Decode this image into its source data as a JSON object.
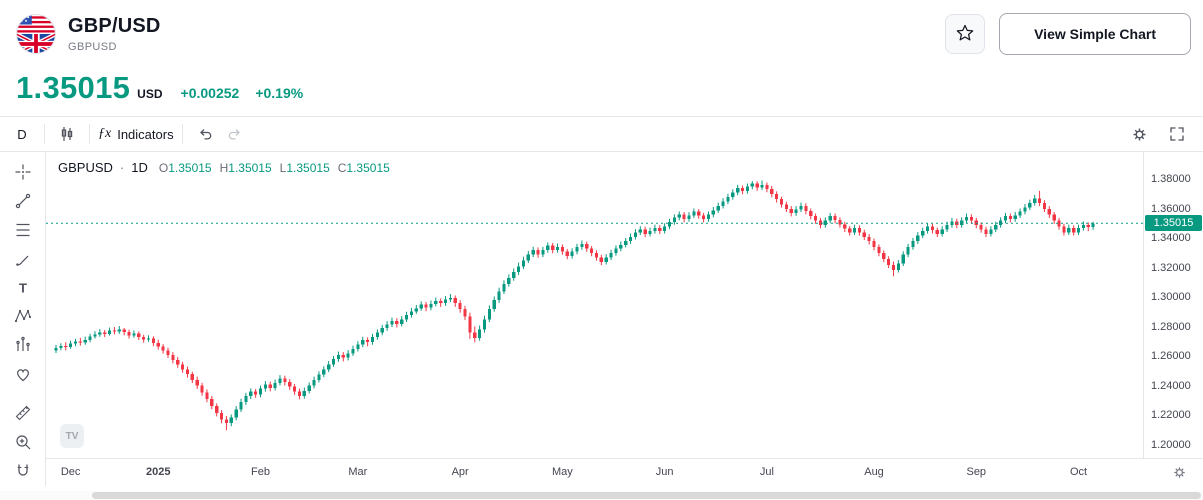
{
  "header": {
    "title": "GBP/USD",
    "subtitle": "GBPUSD",
    "actions": {
      "view_simple_chart": "View Simple Chart"
    }
  },
  "quote": {
    "price": "1.35015",
    "currency": "USD",
    "change": "+0.00252",
    "change_percent": "+0.19%"
  },
  "toolbar": {
    "interval": "D",
    "fx_glyph": "ƒx",
    "indicators_label": "Indicators"
  },
  "icons": {
    "favorite": "star-icon",
    "candle_style": "candles-icon",
    "indicators": "fx-icon",
    "undo": "undo-arrow-icon",
    "redo": "redo-arrow-icon",
    "settings": "gear-icon",
    "fullscreen": "fullscreen-icon",
    "axis_settings": "gear-icon"
  },
  "left_toolbar_tools": [
    "crosshair",
    "trend-line",
    "fib-retracement",
    "brush",
    "text",
    "xabcd-pattern",
    "forecast-bars",
    "heart-emoji",
    "ruler-measure",
    "zoom-in",
    "magnet"
  ],
  "legend": {
    "symbol": "GBPUSD",
    "separator": "·",
    "interval": "1D",
    "open_label": "O",
    "open": "1.35015",
    "high_label": "H",
    "high": "1.35015",
    "low_label": "L",
    "low": "1.35015",
    "close_label": "C",
    "close": "1.35015"
  },
  "watermark": "TV",
  "chart_data": {
    "type": "candlestick",
    "symbol": "GBPUSD",
    "interval": "1D",
    "last_price": 1.35015,
    "colors": {
      "up": "#089981",
      "down": "#f23645"
    },
    "grid": false,
    "legend_position": "top-left",
    "y_ticks": [
      1.38,
      1.36,
      1.34,
      1.32,
      1.3,
      1.28,
      1.26,
      1.24,
      1.22,
      1.2
    ],
    "y_range": [
      1.191,
      1.3985
    ],
    "x_labels": [
      {
        "label": "Dec",
        "i": 3
      },
      {
        "label": "2025",
        "i": 21
      },
      {
        "label": "Feb",
        "i": 42
      },
      {
        "label": "Mar",
        "i": 62
      },
      {
        "label": "Apr",
        "i": 83
      },
      {
        "label": "May",
        "i": 104
      },
      {
        "label": "Jun",
        "i": 125
      },
      {
        "label": "Jul",
        "i": 146
      },
      {
        "label": "Aug",
        "i": 168
      },
      {
        "label": "Sep",
        "i": 189
      },
      {
        "label": "Oct",
        "i": 210
      }
    ],
    "candles": [
      [
        1.264,
        1.2677,
        1.2622,
        1.2655
      ],
      [
        1.2655,
        1.2688,
        1.2641,
        1.267
      ],
      [
        1.267,
        1.2695,
        1.264,
        1.2662
      ],
      [
        1.2662,
        1.2706,
        1.265,
        1.2685
      ],
      [
        1.2685,
        1.2718,
        1.2668,
        1.27
      ],
      [
        1.27,
        1.2725,
        1.2672,
        1.2692
      ],
      [
        1.2692,
        1.2733,
        1.2678,
        1.271
      ],
      [
        1.271,
        1.2752,
        1.2695,
        1.2735
      ],
      [
        1.2735,
        1.277,
        1.272,
        1.2748
      ],
      [
        1.2748,
        1.2784,
        1.2732,
        1.276
      ],
      [
        1.276,
        1.2778,
        1.273,
        1.2752
      ],
      [
        1.2752,
        1.2795,
        1.274,
        1.2775
      ],
      [
        1.2775,
        1.2798,
        1.2748,
        1.2768
      ],
      [
        1.2768,
        1.2805,
        1.2752,
        1.278
      ],
      [
        1.278,
        1.2792,
        1.2742,
        1.2765
      ],
      [
        1.2765,
        1.278,
        1.272,
        1.2742
      ],
      [
        1.2742,
        1.2775,
        1.2726,
        1.2755
      ],
      [
        1.2755,
        1.2768,
        1.271,
        1.273
      ],
      [
        1.273,
        1.2745,
        1.2692,
        1.2712
      ],
      [
        1.2712,
        1.2742,
        1.2698,
        1.272
      ],
      [
        1.272,
        1.2735,
        1.2668,
        1.269
      ],
      [
        1.269,
        1.2712,
        1.2645,
        1.2665
      ],
      [
        1.2665,
        1.2682,
        1.2618,
        1.264
      ],
      [
        1.264,
        1.2658,
        1.2588,
        1.261
      ],
      [
        1.261,
        1.2628,
        1.2552,
        1.2575
      ],
      [
        1.2575,
        1.2595,
        1.2522,
        1.2545
      ],
      [
        1.2545,
        1.2562,
        1.2488,
        1.251
      ],
      [
        1.251,
        1.253,
        1.2455,
        1.2478
      ],
      [
        1.2478,
        1.2495,
        1.2418,
        1.244
      ],
      [
        1.244,
        1.2462,
        1.2378,
        1.24
      ],
      [
        1.24,
        1.242,
        1.2332,
        1.2355
      ],
      [
        1.2355,
        1.2375,
        1.2288,
        1.231
      ],
      [
        1.231,
        1.233,
        1.224,
        1.2262
      ],
      [
        1.2262,
        1.228,
        1.2192,
        1.2215
      ],
      [
        1.2215,
        1.2235,
        1.2145,
        1.217
      ],
      [
        1.217,
        1.2195,
        1.2098,
        1.2148
      ],
      [
        1.2148,
        1.2205,
        1.2125,
        1.2185
      ],
      [
        1.2185,
        1.2262,
        1.2165,
        1.224
      ],
      [
        1.224,
        1.2312,
        1.2222,
        1.229
      ],
      [
        1.229,
        1.2352,
        1.227,
        1.233
      ],
      [
        1.233,
        1.2382,
        1.231,
        1.236
      ],
      [
        1.236,
        1.2378,
        1.2318,
        1.234
      ],
      [
        1.234,
        1.2402,
        1.2322,
        1.238
      ],
      [
        1.238,
        1.2432,
        1.236,
        1.241
      ],
      [
        1.241,
        1.2428,
        1.2362,
        1.2385
      ],
      [
        1.2385,
        1.2442,
        1.2368,
        1.242
      ],
      [
        1.242,
        1.2472,
        1.2402,
        1.245
      ],
      [
        1.245,
        1.2468,
        1.2402,
        1.2425
      ],
      [
        1.2425,
        1.2445,
        1.2372,
        1.2395
      ],
      [
        1.2395,
        1.2412,
        1.2338,
        1.236
      ],
      [
        1.236,
        1.238,
        1.2308,
        1.233
      ],
      [
        1.233,
        1.2388,
        1.2312,
        1.2365
      ],
      [
        1.2365,
        1.2422,
        1.2348,
        1.24
      ],
      [
        1.24,
        1.2462,
        1.2382,
        1.244
      ],
      [
        1.244,
        1.2498,
        1.2422,
        1.2475
      ],
      [
        1.2475,
        1.2532,
        1.2458,
        1.251
      ],
      [
        1.251,
        1.2568,
        1.2492,
        1.2545
      ],
      [
        1.2545,
        1.2602,
        1.2528,
        1.258
      ],
      [
        1.258,
        1.2632,
        1.2562,
        1.261
      ],
      [
        1.261,
        1.2628,
        1.2565,
        1.259
      ],
      [
        1.259,
        1.2642,
        1.2572,
        1.262
      ],
      [
        1.262,
        1.2672,
        1.2602,
        1.265
      ],
      [
        1.265,
        1.2702,
        1.2632,
        1.268
      ],
      [
        1.268,
        1.2732,
        1.2662,
        1.271
      ],
      [
        1.271,
        1.2728,
        1.2668,
        1.2695
      ],
      [
        1.2695,
        1.2752,
        1.2678,
        1.273
      ],
      [
        1.273,
        1.2782,
        1.2712,
        1.276
      ],
      [
        1.276,
        1.2812,
        1.2742,
        1.279
      ],
      [
        1.279,
        1.2838,
        1.2772,
        1.2815
      ],
      [
        1.2815,
        1.2862,
        1.2798,
        1.284
      ],
      [
        1.284,
        1.2858,
        1.2795,
        1.282
      ],
      [
        1.282,
        1.2872,
        1.2802,
        1.285
      ],
      [
        1.285,
        1.2902,
        1.2832,
        1.288
      ],
      [
        1.288,
        1.2928,
        1.2862,
        1.2905
      ],
      [
        1.2905,
        1.2948,
        1.2888,
        1.2925
      ],
      [
        1.2925,
        1.2972,
        1.2908,
        1.295
      ],
      [
        1.295,
        1.2968,
        1.2905,
        1.293
      ],
      [
        1.293,
        1.2978,
        1.2912,
        1.2955
      ],
      [
        1.2955,
        1.2998,
        1.2938,
        1.2975
      ],
      [
        1.2975,
        1.2992,
        1.2935,
        1.296
      ],
      [
        1.296,
        1.3008,
        1.2942,
        1.2985
      ],
      [
        1.2985,
        1.3022,
        1.2968,
        1.2995
      ],
      [
        1.2995,
        1.3012,
        1.2935,
        1.296
      ],
      [
        1.296,
        1.298,
        1.2895,
        1.292
      ],
      [
        1.292,
        1.2942,
        1.2845,
        1.287
      ],
      [
        1.287,
        1.2895,
        1.2718,
        1.276
      ],
      [
        1.276,
        1.2802,
        1.2695,
        1.2725
      ],
      [
        1.2725,
        1.2808,
        1.2705,
        1.278
      ],
      [
        1.278,
        1.2875,
        1.276,
        1.285
      ],
      [
        1.285,
        1.2945,
        1.2832,
        1.292
      ],
      [
        1.292,
        1.3005,
        1.2902,
        1.298
      ],
      [
        1.298,
        1.3065,
        1.2962,
        1.304
      ],
      [
        1.304,
        1.3115,
        1.3022,
        1.309
      ],
      [
        1.309,
        1.3155,
        1.3072,
        1.313
      ],
      [
        1.313,
        1.3195,
        1.3112,
        1.317
      ],
      [
        1.317,
        1.3235,
        1.3152,
        1.321
      ],
      [
        1.321,
        1.3275,
        1.3192,
        1.325
      ],
      [
        1.325,
        1.3315,
        1.3232,
        1.329
      ],
      [
        1.329,
        1.3342,
        1.3272,
        1.332
      ],
      [
        1.332,
        1.3338,
        1.3268,
        1.329
      ],
      [
        1.329,
        1.3342,
        1.3272,
        1.332
      ],
      [
        1.332,
        1.3372,
        1.3302,
        1.335
      ],
      [
        1.335,
        1.3368,
        1.3298,
        1.332
      ],
      [
        1.332,
        1.3365,
        1.3302,
        1.334
      ],
      [
        1.334,
        1.3358,
        1.3288,
        1.331
      ],
      [
        1.331,
        1.3328,
        1.3258,
        1.328
      ],
      [
        1.328,
        1.3332,
        1.3262,
        1.331
      ],
      [
        1.331,
        1.3362,
        1.3292,
        1.334
      ],
      [
        1.334,
        1.3385,
        1.3322,
        1.336
      ],
      [
        1.336,
        1.3378,
        1.3308,
        1.333
      ],
      [
        1.333,
        1.3348,
        1.3278,
        1.33
      ],
      [
        1.33,
        1.3318,
        1.3248,
        1.327
      ],
      [
        1.327,
        1.3288,
        1.3218,
        1.324
      ],
      [
        1.324,
        1.3292,
        1.3222,
        1.327
      ],
      [
        1.327,
        1.3322,
        1.3252,
        1.33
      ],
      [
        1.33,
        1.3352,
        1.3282,
        1.333
      ],
      [
        1.333,
        1.3378,
        1.3312,
        1.3355
      ],
      [
        1.3355,
        1.3402,
        1.3338,
        1.338
      ],
      [
        1.338,
        1.3432,
        1.3362,
        1.341
      ],
      [
        1.341,
        1.3462,
        1.3392,
        1.344
      ],
      [
        1.344,
        1.3482,
        1.3422,
        1.346
      ],
      [
        1.346,
        1.3478,
        1.3408,
        1.343
      ],
      [
        1.343,
        1.3472,
        1.3412,
        1.345
      ],
      [
        1.345,
        1.3492,
        1.3432,
        1.347
      ],
      [
        1.347,
        1.3488,
        1.3428,
        1.345
      ],
      [
        1.345,
        1.3502,
        1.3432,
        1.348
      ],
      [
        1.348,
        1.3532,
        1.3462,
        1.351
      ],
      [
        1.351,
        1.3562,
        1.3492,
        1.354
      ],
      [
        1.354,
        1.3582,
        1.3522,
        1.356
      ],
      [
        1.356,
        1.3578,
        1.3508,
        1.353
      ],
      [
        1.353,
        1.3577,
        1.3512,
        1.3555
      ],
      [
        1.3555,
        1.3602,
        1.3538,
        1.358
      ],
      [
        1.358,
        1.3598,
        1.3532,
        1.3555
      ],
      [
        1.3555,
        1.3572,
        1.3508,
        1.353
      ],
      [
        1.353,
        1.3582,
        1.3512,
        1.356
      ],
      [
        1.356,
        1.3612,
        1.3542,
        1.359
      ],
      [
        1.359,
        1.3642,
        1.3572,
        1.362
      ],
      [
        1.362,
        1.3672,
        1.3602,
        1.365
      ],
      [
        1.365,
        1.3702,
        1.3632,
        1.368
      ],
      [
        1.368,
        1.3732,
        1.3662,
        1.371
      ],
      [
        1.371,
        1.3762,
        1.3692,
        1.374
      ],
      [
        1.374,
        1.3758,
        1.3698,
        1.372
      ],
      [
        1.372,
        1.3772,
        1.3702,
        1.375
      ],
      [
        1.375,
        1.3788,
        1.3732,
        1.377
      ],
      [
        1.377,
        1.3787,
        1.3722,
        1.3745
      ],
      [
        1.3745,
        1.3792,
        1.3728,
        1.376
      ],
      [
        1.376,
        1.3778,
        1.3712,
        1.3735
      ],
      [
        1.3735,
        1.3755,
        1.3678,
        1.37
      ],
      [
        1.37,
        1.3718,
        1.3642,
        1.3665
      ],
      [
        1.3665,
        1.3682,
        1.3608,
        1.363
      ],
      [
        1.363,
        1.3648,
        1.3578,
        1.36
      ],
      [
        1.36,
        1.3618,
        1.3548,
        1.357
      ],
      [
        1.357,
        1.3618,
        1.3552,
        1.3595
      ],
      [
        1.3595,
        1.3642,
        1.3578,
        1.362
      ],
      [
        1.362,
        1.3638,
        1.3562,
        1.3585
      ],
      [
        1.3585,
        1.3602,
        1.3528,
        1.355
      ],
      [
        1.355,
        1.3568,
        1.3498,
        1.352
      ],
      [
        1.352,
        1.3538,
        1.3468,
        1.349
      ],
      [
        1.349,
        1.3542,
        1.3472,
        1.352
      ],
      [
        1.352,
        1.3572,
        1.3502,
        1.355
      ],
      [
        1.355,
        1.3568,
        1.3502,
        1.3525
      ],
      [
        1.3525,
        1.3542,
        1.3472,
        1.3495
      ],
      [
        1.3495,
        1.3512,
        1.3442,
        1.3465
      ],
      [
        1.3465,
        1.3482,
        1.3418,
        1.344
      ],
      [
        1.344,
        1.3492,
        1.3422,
        1.347
      ],
      [
        1.347,
        1.3488,
        1.3418,
        1.344
      ],
      [
        1.344,
        1.3458,
        1.3388,
        1.341
      ],
      [
        1.341,
        1.3428,
        1.3358,
        1.338
      ],
      [
        1.338,
        1.3398,
        1.3318,
        1.334
      ],
      [
        1.334,
        1.3358,
        1.3278,
        1.33
      ],
      [
        1.33,
        1.3318,
        1.3238,
        1.326
      ],
      [
        1.326,
        1.3278,
        1.3198,
        1.322
      ],
      [
        1.322,
        1.3242,
        1.3142,
        1.3185
      ],
      [
        1.3185,
        1.3252,
        1.3168,
        1.323
      ],
      [
        1.323,
        1.3312,
        1.3212,
        1.329
      ],
      [
        1.329,
        1.3362,
        1.3272,
        1.334
      ],
      [
        1.334,
        1.3402,
        1.3322,
        1.338
      ],
      [
        1.338,
        1.3442,
        1.3362,
        1.342
      ],
      [
        1.342,
        1.3472,
        1.3402,
        1.345
      ],
      [
        1.345,
        1.3502,
        1.3432,
        1.348
      ],
      [
        1.348,
        1.3498,
        1.3432,
        1.3455
      ],
      [
        1.3455,
        1.3472,
        1.3408,
        1.343
      ],
      [
        1.343,
        1.3482,
        1.3412,
        1.346
      ],
      [
        1.346,
        1.3512,
        1.3442,
        1.349
      ],
      [
        1.349,
        1.3538,
        1.3472,
        1.3515
      ],
      [
        1.3515,
        1.3532,
        1.3468,
        1.349
      ],
      [
        1.349,
        1.3542,
        1.3472,
        1.352
      ],
      [
        1.352,
        1.3568,
        1.3502,
        1.3545
      ],
      [
        1.3545,
        1.3562,
        1.3498,
        1.352
      ],
      [
        1.352,
        1.3538,
        1.3468,
        1.349
      ],
      [
        1.349,
        1.3508,
        1.3438,
        1.346
      ],
      [
        1.346,
        1.3478,
        1.3408,
        1.343
      ],
      [
        1.343,
        1.3482,
        1.3412,
        1.346
      ],
      [
        1.346,
        1.3512,
        1.3442,
        1.349
      ],
      [
        1.349,
        1.3542,
        1.3472,
        1.352
      ],
      [
        1.352,
        1.3572,
        1.3502,
        1.355
      ],
      [
        1.355,
        1.3568,
        1.3508,
        1.353
      ],
      [
        1.353,
        1.3578,
        1.3512,
        1.3555
      ],
      [
        1.3555,
        1.3602,
        1.3538,
        1.358
      ],
      [
        1.358,
        1.3632,
        1.3562,
        1.361
      ],
      [
        1.361,
        1.3662,
        1.3592,
        1.364
      ],
      [
        1.364,
        1.3695,
        1.3622,
        1.367
      ],
      [
        1.367,
        1.3722,
        1.3618,
        1.364
      ],
      [
        1.364,
        1.3658,
        1.3578,
        1.36
      ],
      [
        1.36,
        1.3618,
        1.3538,
        1.356
      ],
      [
        1.356,
        1.3578,
        1.3498,
        1.352
      ],
      [
        1.352,
        1.3538,
        1.3458,
        1.348
      ],
      [
        1.348,
        1.3498,
        1.3418,
        1.344
      ],
      [
        1.344,
        1.3492,
        1.3422,
        1.347
      ],
      [
        1.347,
        1.3488,
        1.3418,
        1.344
      ],
      [
        1.344,
        1.3492,
        1.3422,
        1.347
      ],
      [
        1.347,
        1.3515,
        1.3452,
        1.349
      ],
      [
        1.349,
        1.3508,
        1.3448,
        1.3475
      ],
      [
        1.3475,
        1.3512,
        1.3458,
        1.35015
      ]
    ]
  }
}
